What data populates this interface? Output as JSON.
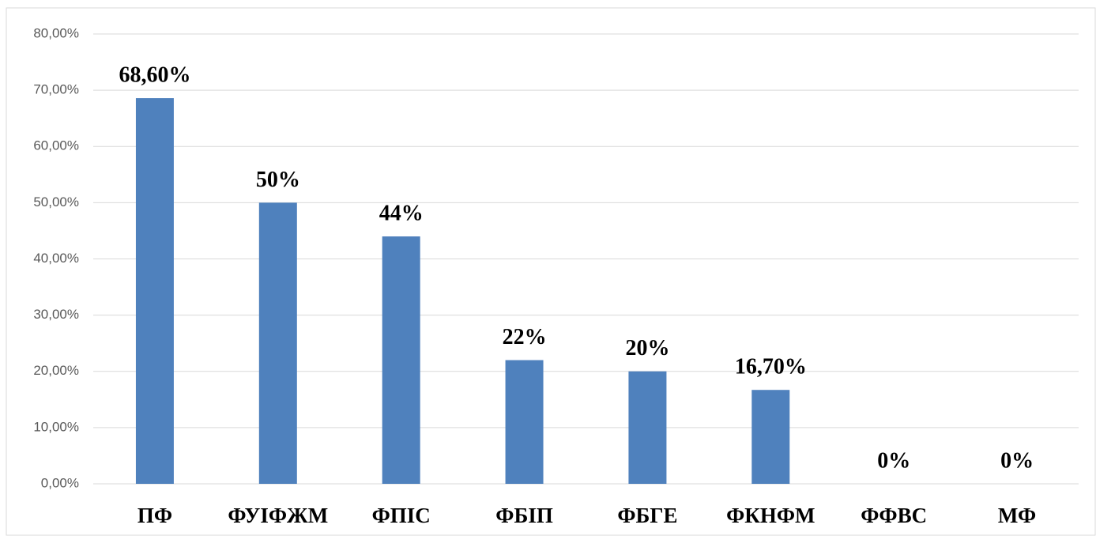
{
  "chart_data": {
    "type": "bar",
    "categories": [
      "ПФ",
      "ФУІФЖМ",
      "ФПІС",
      "ФБІП",
      "ФБГЕ",
      "ФКНФМ",
      "ФФВС",
      "МФ"
    ],
    "values": [
      68.6,
      50,
      44,
      22,
      20,
      16.7,
      0,
      0
    ],
    "value_labels": [
      "68,60%",
      "50%",
      "44%",
      "22%",
      "20%",
      "16,70%",
      "0%",
      "0%"
    ],
    "color": "#4f81bd",
    "ylim": [
      0,
      80
    ],
    "yticks": [
      {
        "value": 0,
        "label": "0,00%"
      },
      {
        "value": 10,
        "label": "10,00%"
      },
      {
        "value": 20,
        "label": "20,00%"
      },
      {
        "value": 30,
        "label": "30,00%"
      },
      {
        "value": 40,
        "label": "40,00%"
      },
      {
        "value": 50,
        "label": "50,00%"
      },
      {
        "value": 60,
        "label": "60,00%"
      },
      {
        "value": 70,
        "label": "70,00%"
      },
      {
        "value": 80,
        "label": "80,00%"
      }
    ],
    "grid": true
  }
}
